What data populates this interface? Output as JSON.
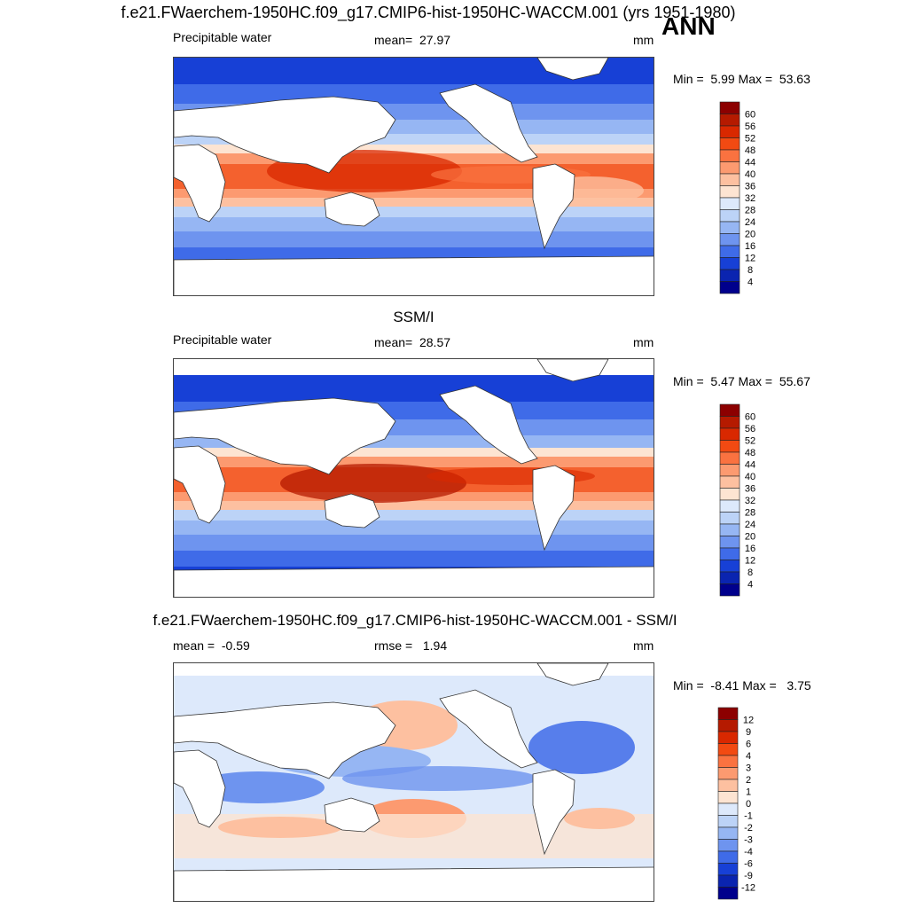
{
  "figure": {
    "main_title": "f.e21.FWaerchem-1950HC.f09_g17.CMIP6-hist-1950HC-WACCM.001 (yrs 1951-1980)",
    "season": "ANN"
  },
  "panels": [
    {
      "id": "model",
      "header": "",
      "variable": "Precipitable water",
      "stat_label": "mean=",
      "stat_value": "27.97",
      "units": "mm",
      "min_label": "Min =",
      "min_value": "5.99",
      "max_label": "Max =",
      "max_value": "53.63"
    },
    {
      "id": "obs",
      "header": "SSM/I",
      "variable": "Precipitable water",
      "stat_label": "mean=",
      "stat_value": "28.57",
      "units": "mm",
      "min_label": "Min =",
      "min_value": "5.47",
      "max_label": "Max =",
      "max_value": "55.67"
    },
    {
      "id": "diff",
      "header": "f.e21.FWaerchem-1950HC.f09_g17.CMIP6-hist-1950HC-WACCM.001 - SSM/I",
      "mean_label": "mean =",
      "mean_value": "-0.59",
      "rmse_label": "rmse =",
      "rmse_value": "1.94",
      "units": "mm",
      "min_label": "Min =",
      "min_value": "-8.41",
      "max_label": "Max =",
      "max_value": "3.75"
    }
  ],
  "colorbars": {
    "field_levels": [
      "60",
      "56",
      "52",
      "48",
      "44",
      "40",
      "36",
      "32",
      "28",
      "24",
      "20",
      "16",
      "12",
      "8",
      "4"
    ],
    "field_colors": [
      "#8c0000",
      "#b51a00",
      "#d92800",
      "#f24a12",
      "#fa7240",
      "#fc9a70",
      "#fdc0a0",
      "#fde4d2",
      "#dde9fb",
      "#bcd3f7",
      "#96b6f3",
      "#6e94ef",
      "#3f6be8",
      "#1740d6",
      "#0a24b0",
      "#00008c"
    ],
    "diff_levels": [
      "12",
      "9",
      "6",
      "4",
      "3",
      "2",
      "1",
      "0",
      "-1",
      "-2",
      "-3",
      "-4",
      "-6",
      "-9",
      "-12"
    ],
    "diff_colors": [
      "#8c0000",
      "#b51a00",
      "#d92800",
      "#f24a12",
      "#fa7240",
      "#fc9a70",
      "#fdc0a0",
      "#fde4d2",
      "#dde9fb",
      "#bcd3f7",
      "#96b6f3",
      "#6e94ef",
      "#3f6be8",
      "#1740d6",
      "#0a24b0",
      "#00008c"
    ]
  }
}
